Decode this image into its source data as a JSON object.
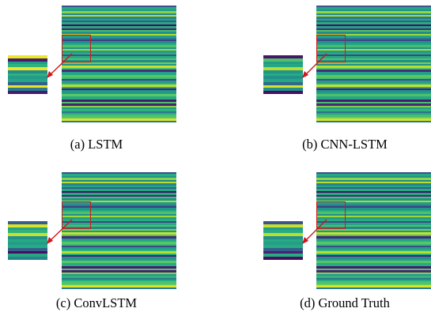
{
  "colors": {
    "zoom_box": "#d0161b",
    "arrow": "#d0161b",
    "colormap": "viridis"
  },
  "panels": [
    {
      "caption": "(a) LSTM",
      "rows": [
        0.25,
        0.62,
        0.55,
        0.82,
        0.45,
        0.9,
        0.45,
        0.58,
        0.3,
        0.6,
        0.04,
        0.6,
        0.12,
        0.7,
        0.5,
        0.88,
        0.55,
        0.42,
        0.2,
        0.5,
        0.62,
        0.72,
        0.5,
        0.86,
        0.56,
        0.64,
        0.25,
        0.62,
        0.72,
        0.46,
        0.78,
        0.52,
        0.92,
        0.7,
        0.15,
        0.55,
        0.62,
        0.74,
        0.68,
        0.22,
        0.55,
        0.65,
        0.9,
        0.62,
        0.12,
        0.52,
        0.55,
        0.75,
        0.62,
        0.62,
        0.1,
        0.72,
        0.12,
        0.82,
        0.55,
        0.65,
        0.4,
        0.62,
        0.72,
        0.75,
        0.95,
        0.42
      ],
      "inset_rows": [
        0.98,
        0.1,
        0.55,
        0.65,
        0.98,
        0.48,
        0.65,
        0.55,
        0.6,
        0.3,
        0.98,
        0.42,
        0.1
      ]
    },
    {
      "caption": "(b) CNN-LSTM",
      "rows": [
        0.28,
        0.6,
        0.5,
        0.84,
        0.48,
        0.88,
        0.42,
        0.6,
        0.3,
        0.62,
        0.06,
        0.58,
        0.15,
        0.72,
        0.48,
        0.86,
        0.58,
        0.4,
        0.22,
        0.52,
        0.6,
        0.7,
        0.5,
        0.88,
        0.55,
        0.62,
        0.22,
        0.6,
        0.72,
        0.48,
        0.8,
        0.5,
        0.9,
        0.72,
        0.15,
        0.55,
        0.6,
        0.75,
        0.7,
        0.25,
        0.55,
        0.65,
        0.92,
        0.62,
        0.12,
        0.5,
        0.58,
        0.72,
        0.6,
        0.6,
        0.1,
        0.7,
        0.15,
        0.8,
        0.55,
        0.66,
        0.38,
        0.6,
        0.7,
        0.78,
        0.94,
        0.42
      ],
      "inset_rows": [
        0.08,
        0.72,
        0.55,
        0.6,
        0.9,
        0.52,
        0.62,
        0.5,
        0.6,
        0.34,
        0.95,
        0.5,
        0.06
      ]
    },
    {
      "caption": "(c) ConvLSTM",
      "rows": [
        0.25,
        0.62,
        0.52,
        0.82,
        0.45,
        0.9,
        0.44,
        0.6,
        0.3,
        0.6,
        0.05,
        0.6,
        0.14,
        0.7,
        0.5,
        0.88,
        0.55,
        0.42,
        0.2,
        0.52,
        0.62,
        0.72,
        0.5,
        0.86,
        0.56,
        0.64,
        0.22,
        0.62,
        0.72,
        0.46,
        0.8,
        0.52,
        0.92,
        0.7,
        0.15,
        0.55,
        0.62,
        0.74,
        0.68,
        0.22,
        0.55,
        0.65,
        0.9,
        0.62,
        0.12,
        0.52,
        0.55,
        0.75,
        0.62,
        0.62,
        0.1,
        0.72,
        0.12,
        0.82,
        0.55,
        0.65,
        0.4,
        0.62,
        0.72,
        0.75,
        0.95,
        0.42
      ],
      "inset_rows": [
        0.3,
        0.95,
        0.58,
        0.65,
        0.92,
        0.5,
        0.62,
        0.55,
        0.62,
        0.3,
        0.05,
        0.6,
        0.45
      ]
    },
    {
      "caption": "(d) Ground Truth",
      "rows": [
        0.26,
        0.6,
        0.52,
        0.84,
        0.46,
        0.9,
        0.44,
        0.6,
        0.3,
        0.62,
        0.05,
        0.6,
        0.14,
        0.72,
        0.5,
        0.88,
        0.56,
        0.42,
        0.2,
        0.52,
        0.62,
        0.72,
        0.5,
        0.86,
        0.55,
        0.64,
        0.24,
        0.6,
        0.72,
        0.46,
        0.8,
        0.52,
        0.92,
        0.7,
        0.14,
        0.55,
        0.62,
        0.74,
        0.68,
        0.24,
        0.55,
        0.66,
        0.9,
        0.62,
        0.12,
        0.5,
        0.56,
        0.74,
        0.62,
        0.62,
        0.1,
        0.72,
        0.14,
        0.82,
        0.55,
        0.66,
        0.4,
        0.62,
        0.72,
        0.76,
        0.95,
        0.42
      ],
      "inset_rows": [
        0.25,
        0.92,
        0.55,
        0.62,
        0.9,
        0.5,
        0.62,
        0.56,
        0.62,
        0.3,
        0.12,
        0.62,
        0.06
      ]
    }
  ]
}
